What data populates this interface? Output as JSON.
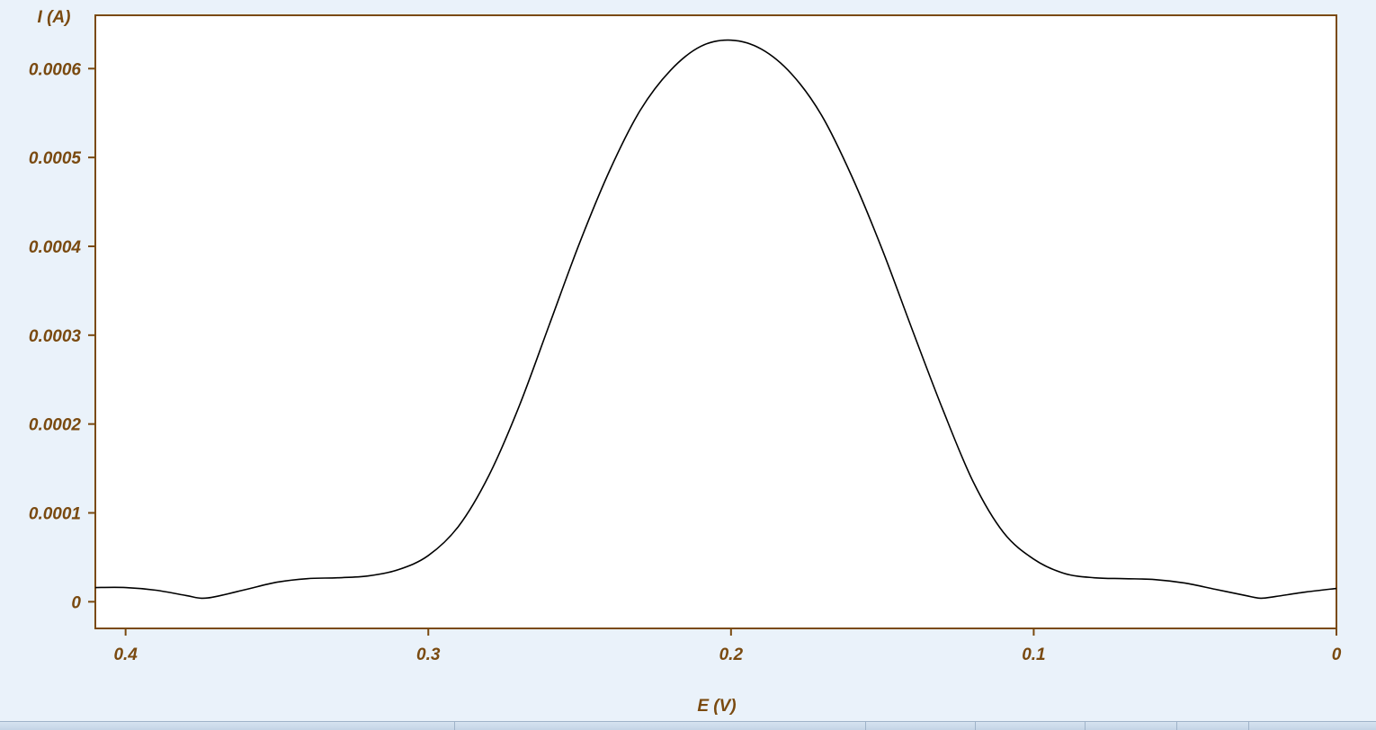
{
  "chart_data": {
    "type": "line",
    "title": "",
    "xlabel": "E (V)",
    "ylabel": "I (A)",
    "xlim": [
      0.41,
      0.0
    ],
    "ylim": [
      -3e-05,
      0.00066
    ],
    "x_ticks": [
      0.4,
      0.3,
      0.2,
      0.1,
      0
    ],
    "x_tick_labels": [
      "0.4",
      "0.3",
      "0.2",
      "0.1",
      "0"
    ],
    "y_ticks": [
      0,
      0.0001,
      0.0002,
      0.0003,
      0.0004,
      0.0005,
      0.0006
    ],
    "y_tick_labels": [
      "0",
      "0.0001",
      "0.0002",
      "0.0003",
      "0.0004",
      "0.0005",
      "0.0006"
    ],
    "grid": false,
    "legend": "none",
    "colors": {
      "axis": "#7a4a10",
      "text": "#7a4a10",
      "line": "#000000",
      "plot_bg": "#ffffff",
      "page_bg": "#eaf2fa"
    },
    "series": [
      {
        "x": [
          0.41,
          0.4,
          0.39,
          0.38,
          0.375,
          0.37,
          0.36,
          0.35,
          0.34,
          0.33,
          0.32,
          0.31,
          0.3,
          0.29,
          0.28,
          0.27,
          0.26,
          0.25,
          0.24,
          0.23,
          0.22,
          0.21,
          0.2,
          0.19,
          0.18,
          0.17,
          0.16,
          0.15,
          0.14,
          0.13,
          0.12,
          0.11,
          0.1,
          0.09,
          0.08,
          0.07,
          0.06,
          0.05,
          0.04,
          0.03,
          0.025,
          0.02,
          0.01,
          0.0
        ],
        "y": [
          1.6e-05,
          1.6e-05,
          1.3e-05,
          7e-06,
          4e-06,
          6e-06,
          1.4e-05,
          2.2e-05,
          2.6e-05,
          2.7e-05,
          2.9e-05,
          3.6e-05,
          5.2e-05,
          8.5e-05,
          0.000142,
          0.00022,
          0.000312,
          0.000404,
          0.000486,
          0.000553,
          0.000598,
          0.000625,
          0.000632,
          0.000622,
          0.000594,
          0.000547,
          0.000478,
          0.000396,
          0.000305,
          0.000216,
          0.000135,
          7.8e-05,
          4.8e-05,
          3.2e-05,
          2.7e-05,
          2.6e-05,
          2.5e-05,
          2.1e-05,
          1.4e-05,
          7e-06,
          4e-06,
          6e-06,
          1.1e-05,
          1.5e-05
        ]
      }
    ]
  }
}
